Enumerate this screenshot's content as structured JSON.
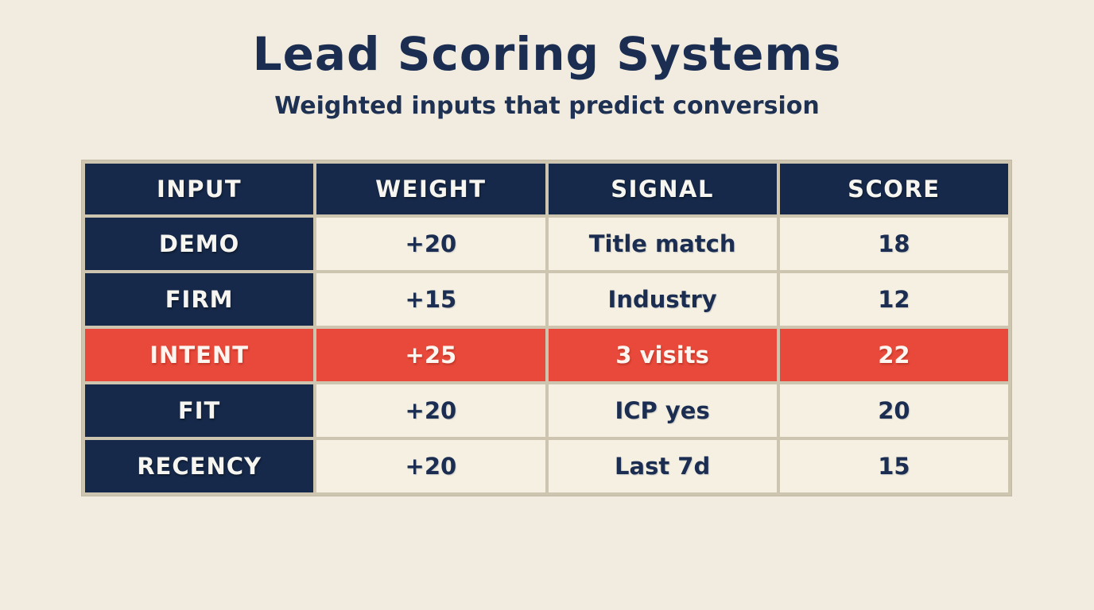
{
  "page": {
    "title": "Lead Scoring Systems",
    "subtitle": "Weighted inputs that predict conversion"
  },
  "colors": {
    "background": "#f1ecdf",
    "navy": "#16294a",
    "highlight_red": "#e8493a",
    "cream_cell": "#f5f0e2",
    "grid_border": "#cdc5b0",
    "text_light": "#f7f5ef",
    "text_dark": "#1b2d50"
  },
  "table": {
    "columns": [
      "INPUT",
      "WEIGHT",
      "SIGNAL",
      "SCORE"
    ],
    "rows": [
      {
        "cells": [
          "DEMO",
          "+20",
          "Title match",
          "18"
        ],
        "highlighted": false
      },
      {
        "cells": [
          "FIRM",
          "+15",
          "Industry",
          "12"
        ],
        "highlighted": false
      },
      {
        "cells": [
          "INTENT",
          "+25",
          "3 visits",
          "22"
        ],
        "highlighted": true
      },
      {
        "cells": [
          "FIT",
          "+20",
          "ICP yes",
          "20"
        ],
        "highlighted": false
      },
      {
        "cells": [
          "RECENCY",
          "+20",
          "Last 7d",
          "15"
        ],
        "highlighted": false
      }
    ]
  },
  "chart_data": {
    "type": "table",
    "title": "Lead Scoring Systems",
    "subtitle": "Weighted inputs that predict conversion",
    "columns": [
      "INPUT",
      "WEIGHT",
      "SIGNAL",
      "SCORE"
    ],
    "rows": [
      [
        "DEMO",
        "+20",
        "Title match",
        18
      ],
      [
        "FIRM",
        "+15",
        "Industry",
        12
      ],
      [
        "INTENT",
        "+25",
        "3 visits",
        22
      ],
      [
        "FIT",
        "+20",
        "ICP yes",
        20
      ],
      [
        "RECENCY",
        "+20",
        "Last 7d",
        15
      ]
    ],
    "highlighted_row": "INTENT",
    "highlight_color": "#e8493a",
    "legend_position": "none",
    "grid": true
  }
}
